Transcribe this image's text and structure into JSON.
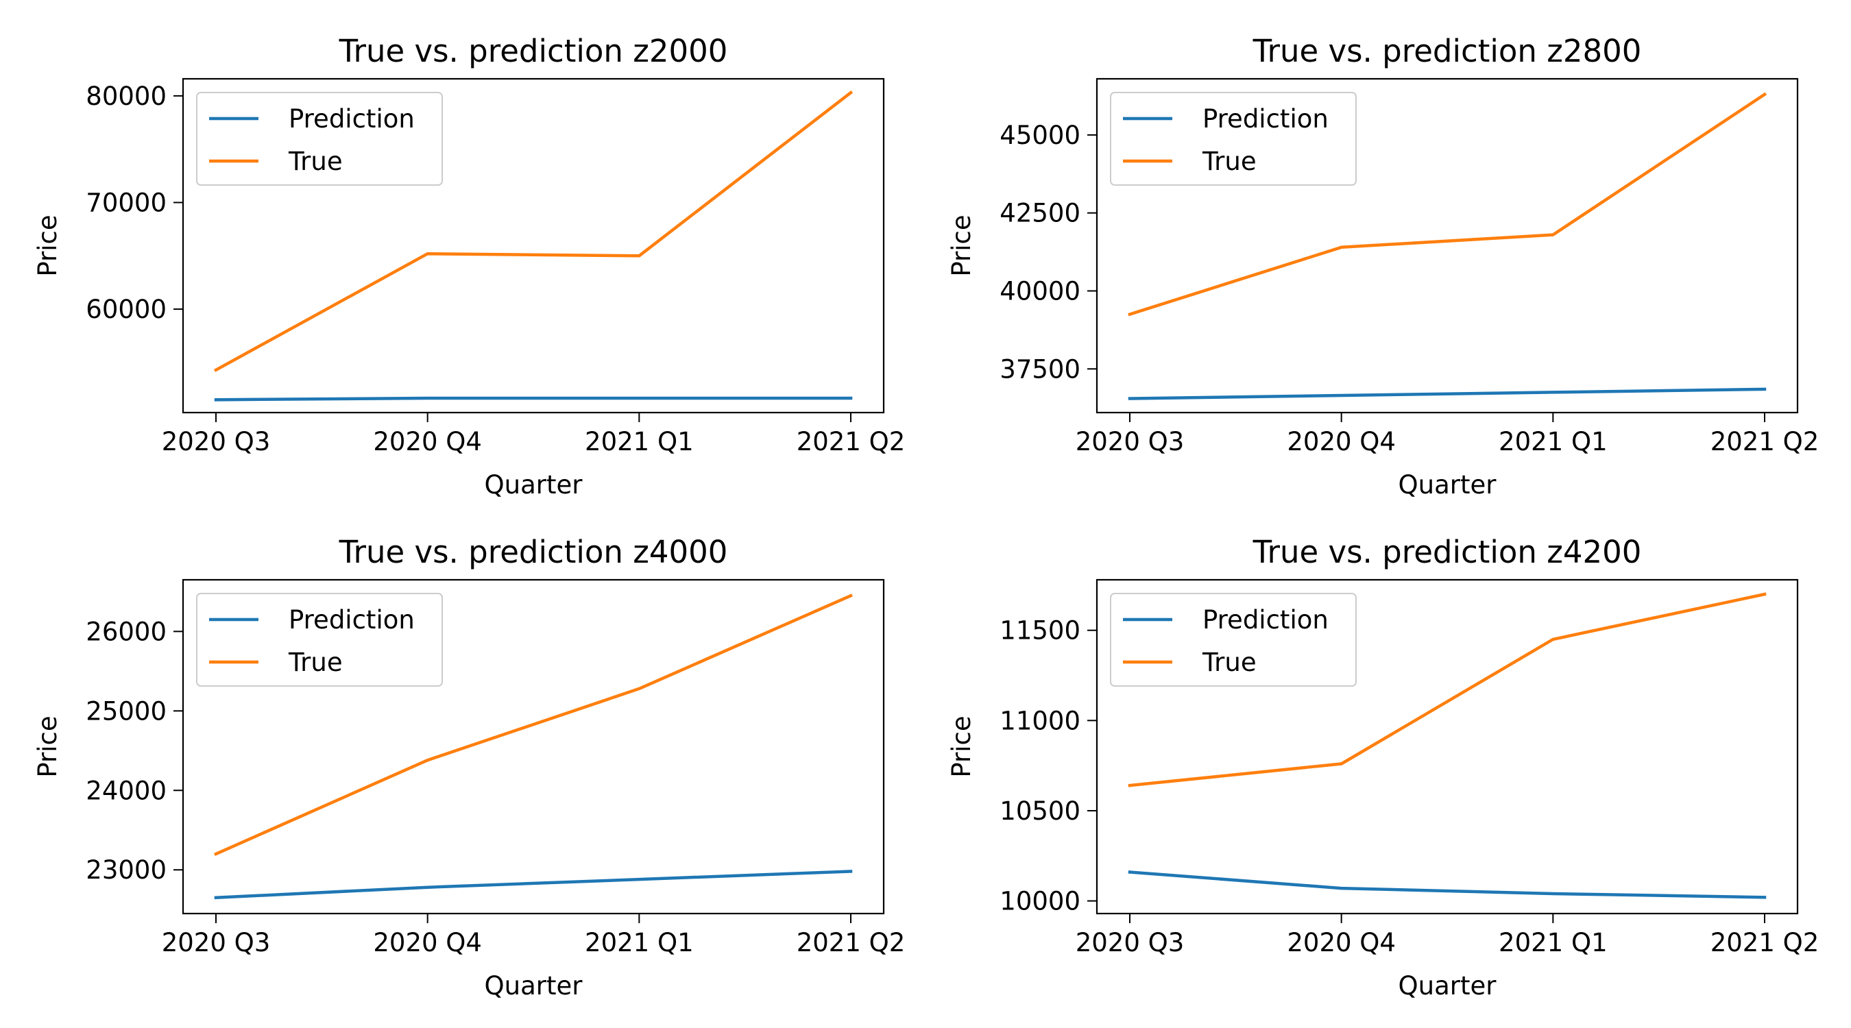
{
  "figure": {
    "grid": false,
    "legend_placement": "upper-left"
  },
  "chart_data": [
    {
      "type": "line",
      "title": "True vs. prediction z2000",
      "xlabel": "Quarter",
      "ylabel": "Price",
      "categories": [
        "2020 Q3",
        "2020 Q4",
        "2021 Q1",
        "2021 Q2"
      ],
      "yticks": [
        60000,
        70000,
        80000
      ],
      "ylim": [
        50300,
        81600
      ],
      "series": [
        {
          "name": "Prediction",
          "color": "#1f77b4",
          "values": [
            51500,
            51650,
            51650,
            51650
          ]
        },
        {
          "name": "True",
          "color": "#ff7f0e",
          "values": [
            54300,
            65200,
            65000,
            80300
          ]
        }
      ]
    },
    {
      "type": "line",
      "title": "True vs. prediction z2800",
      "xlabel": "Quarter",
      "ylabel": "Price",
      "categories": [
        "2020 Q3",
        "2020 Q4",
        "2021 Q1",
        "2021 Q2"
      ],
      "yticks": [
        37500,
        40000,
        42500,
        45000
      ],
      "ylim": [
        36100,
        46800
      ],
      "series": [
        {
          "name": "Prediction",
          "color": "#1f77b4",
          "values": [
            36550,
            36650,
            36750,
            36850
          ]
        },
        {
          "name": "True",
          "color": "#ff7f0e",
          "values": [
            39250,
            41400,
            41800,
            46300
          ]
        }
      ]
    },
    {
      "type": "line",
      "title": "True vs. prediction z4000",
      "xlabel": "Quarter",
      "ylabel": "Price",
      "categories": [
        "2020 Q3",
        "2020 Q4",
        "2021 Q1",
        "2021 Q2"
      ],
      "yticks": [
        23000,
        24000,
        25000,
        26000
      ],
      "ylim": [
        22450,
        26650
      ],
      "series": [
        {
          "name": "Prediction",
          "color": "#1f77b4",
          "values": [
            22650,
            22780,
            22880,
            22980
          ]
        },
        {
          "name": "True",
          "color": "#ff7f0e",
          "values": [
            23200,
            24380,
            25280,
            26450
          ]
        }
      ]
    },
    {
      "type": "line",
      "title": "True vs. prediction z4200",
      "xlabel": "Quarter",
      "ylabel": "Price",
      "categories": [
        "2020 Q3",
        "2020 Q4",
        "2021 Q1",
        "2021 Q2"
      ],
      "yticks": [
        10000,
        10500,
        11000,
        11500
      ],
      "ylim": [
        9930,
        11780
      ],
      "series": [
        {
          "name": "Prediction",
          "color": "#1f77b4",
          "values": [
            10160,
            10070,
            10040,
            10020
          ]
        },
        {
          "name": "True",
          "color": "#ff7f0e",
          "values": [
            10640,
            10760,
            11450,
            11700
          ]
        }
      ]
    }
  ]
}
